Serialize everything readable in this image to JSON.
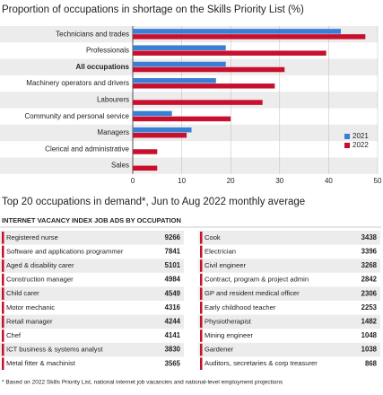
{
  "chart_data": {
    "type": "hbar",
    "title": "Proportion of occupations in shortage on the Skills Priority List (%)",
    "categories": [
      "Technicians and trades",
      "Professionals",
      "All occupations",
      "Machinery operators and drivers",
      "Labourers",
      "Community and personal service",
      "Managers",
      "Clerical and administrative",
      "Sales"
    ],
    "series": [
      {
        "name": "2021",
        "color": "#3a7fd5",
        "values": [
          42.5,
          19,
          19,
          17,
          0,
          8,
          12,
          0,
          0
        ]
      },
      {
        "name": "2022",
        "color": "#c8102e",
        "values": [
          47.5,
          39.5,
          31,
          29,
          26.5,
          20,
          11,
          5,
          5
        ]
      }
    ],
    "xlim": [
      0,
      50
    ],
    "xticks": [
      0,
      10,
      20,
      30,
      40,
      50
    ],
    "grid": true,
    "legend": "right"
  },
  "table": {
    "title": "Top 20 occupations in demand*, Jun to Aug 2022 monthly average",
    "subtitle": "INTERNET VACANCY INDEX JOB ADS BY OCCUPATION",
    "left": [
      [
        "Registered nurse",
        9266
      ],
      [
        "Software and applications programmer",
        7841
      ],
      [
        "Aged & disability carer",
        5101
      ],
      [
        "Construction manager",
        4984
      ],
      [
        "Child carer",
        4549
      ],
      [
        "Motor mechanic",
        4316
      ],
      [
        "Retail manager",
        4244
      ],
      [
        "Chef",
        4141
      ],
      [
        "ICT business & systems analyst",
        3830
      ],
      [
        "Metal fitter & machinist",
        3565
      ]
    ],
    "right": [
      [
        "Cook",
        3438
      ],
      [
        "Electrician",
        3396
      ],
      [
        "Civil engineer",
        3268
      ],
      [
        "Contract, program & project admin",
        2842
      ],
      [
        "GP and resident medical officer",
        2306
      ],
      [
        "Early childhood teacher",
        2253
      ],
      [
        "Physiotherapist",
        1482
      ],
      [
        "Mining engineer",
        1048
      ],
      [
        "Gardener",
        1038
      ],
      [
        "Auditors, secretaries & corp treasurer",
        868
      ]
    ],
    "footnote": "* Based on 2022 Skills Priority List, national internet job vacancies and national-level employment projections"
  }
}
